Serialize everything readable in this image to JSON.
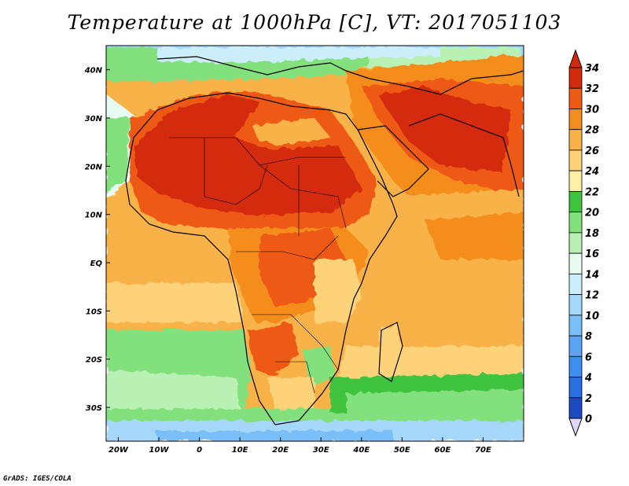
{
  "title": "Temperature at 1000hPa [C], VT: 2017051103",
  "credit": "GrADS: IGES/COLA",
  "map": {
    "lon_range": [
      -23,
      80
    ],
    "lat_range": [
      -37,
      45
    ],
    "lon_ticks": [
      {
        "value": -20,
        "label": "20W"
      },
      {
        "value": -10,
        "label": "10W"
      },
      {
        "value": 0,
        "label": "0"
      },
      {
        "value": 10,
        "label": "10E"
      },
      {
        "value": 20,
        "label": "20E"
      },
      {
        "value": 30,
        "label": "30E"
      },
      {
        "value": 40,
        "label": "40E"
      },
      {
        "value": 50,
        "label": "50E"
      },
      {
        "value": 60,
        "label": "60E"
      },
      {
        "value": 70,
        "label": "70E"
      }
    ],
    "lat_ticks": [
      {
        "value": 40,
        "label": "40N"
      },
      {
        "value": 30,
        "label": "30N"
      },
      {
        "value": 20,
        "label": "20N"
      },
      {
        "value": 10,
        "label": "10N"
      },
      {
        "value": 0,
        "label": "EQ"
      },
      {
        "value": -10,
        "label": "10S"
      },
      {
        "value": -20,
        "label": "20S"
      },
      {
        "value": -30,
        "label": "30S"
      }
    ]
  },
  "colorbar": {
    "levels": [
      "0",
      "2",
      "4",
      "6",
      "8",
      "10",
      "12",
      "14",
      "16",
      "18",
      "20",
      "22",
      "24",
      "26",
      "28",
      "30",
      "32",
      "34"
    ],
    "colors": [
      "#1f2a8a",
      "#1e49c4",
      "#2a6fe0",
      "#3d8ef0",
      "#5aa6f5",
      "#7abff8",
      "#a5d7fb",
      "#cbeefa",
      "#e6fbf2",
      "#b9f0b4",
      "#82e07d",
      "#3fc43f",
      "#fff0a8",
      "#fdd278",
      "#f9b247",
      "#f58d1e",
      "#ee5a12",
      "#d42a0c",
      "#b8160a"
    ],
    "under_color": "#e0d6f5",
    "over_color": "#d42a0c"
  }
}
